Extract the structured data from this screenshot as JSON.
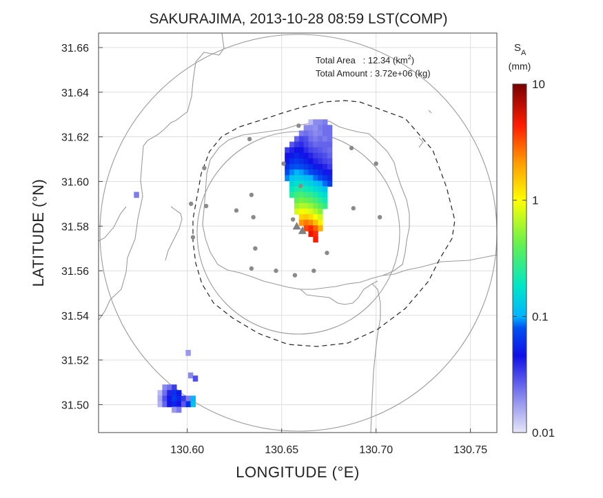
{
  "chart_data": {
    "type": "heatmap",
    "title": "SAKURAJIMA, 2013-10-28 08:59 LST(COMP)",
    "xlabel": "LONGITUDE (°E)",
    "ylabel": "LATITUDE (°N)",
    "xlim": [
      130.553,
      130.764
    ],
    "ylim": [
      31.4875,
      31.6665
    ],
    "xticks": [
      "130.60",
      "130.65",
      "130.70",
      "130.75"
    ],
    "xtick_values": [
      130.6,
      130.65,
      130.7,
      130.75
    ],
    "yticks": [
      "31.50",
      "31.52",
      "31.54",
      "31.56",
      "31.58",
      "31.60",
      "31.62",
      "31.64",
      "31.66"
    ],
    "ytick_values": [
      31.5,
      31.52,
      31.54,
      31.56,
      31.58,
      31.6,
      31.62,
      31.64,
      31.66
    ],
    "grid": true,
    "annotations": {
      "area_label": "Total Area   : 12.34 (km",
      "area_sup": "2",
      "area_close": ")",
      "amount_label": "Total Amount : 3.72e+06 (kg)"
    },
    "colorbar": {
      "label": "S",
      "label_sub": "A",
      "unit": "(mm)",
      "scale": "log",
      "range": [
        0.01,
        10
      ],
      "tick_labels": [
        "10",
        "1",
        "0.1",
        "0.01"
      ],
      "tick_values": [
        10,
        1,
        0.1,
        0.01
      ],
      "colors": [
        "#e6e6f8",
        "#1010e6",
        "#00b4ff",
        "#00e6c8",
        "#64f050",
        "#ffff00",
        "#ff9600",
        "#ff1e00",
        "#780000"
      ]
    },
    "vent": {
      "lon": 130.658,
      "lat": 31.58,
      "lon2": 130.661,
      "lat2": 31.578
    },
    "stations": [
      [
        130.659,
        31.625
      ],
      [
        130.633,
        31.619
      ],
      [
        130.687,
        31.615
      ],
      [
        130.609,
        31.606
      ],
      [
        130.651,
        31.608
      ],
      [
        130.66,
        31.598
      ],
      [
        130.7,
        31.608
      ],
      [
        130.602,
        31.59
      ],
      [
        130.61,
        31.589
      ],
      [
        130.634,
        31.594
      ],
      [
        130.626,
        31.587
      ],
      [
        130.635,
        31.584
      ],
      [
        130.688,
        31.588
      ],
      [
        130.702,
        31.584
      ],
      [
        130.656,
        31.583
      ],
      [
        130.603,
        31.575
      ],
      [
        130.636,
        31.57
      ],
      [
        130.674,
        31.568
      ],
      [
        130.634,
        31.561
      ],
      [
        130.647,
        31.56
      ],
      [
        130.657,
        31.558
      ],
      [
        130.667,
        31.56
      ]
    ],
    "plume": {
      "cell_lon": 0.0025,
      "cell_lat": 0.0025,
      "rows": [
        {
          "lat": 31.6265,
          "cells": [
            [
              130.6655,
              0.014
            ],
            [
              130.668,
              0.02
            ],
            [
              130.6705,
              0.02
            ],
            [
              130.673,
              0.022
            ]
          ]
        },
        {
          "lat": 31.624,
          "cells": [
            [
              130.663,
              0.02
            ],
            [
              130.6655,
              0.02
            ],
            [
              130.668,
              0.019
            ],
            [
              130.6705,
              0.022
            ],
            [
              130.673,
              0.024
            ],
            [
              130.6755,
              0.024
            ]
          ]
        },
        {
          "lat": 31.6215,
          "cells": [
            [
              130.6605,
              0.022
            ],
            [
              130.663,
              0.024
            ],
            [
              130.6655,
              0.022
            ],
            [
              130.668,
              0.02
            ],
            [
              130.6705,
              0.021
            ],
            [
              130.673,
              0.024
            ],
            [
              130.6755,
              0.024
            ]
          ]
        },
        {
          "lat": 31.619,
          "cells": [
            [
              130.658,
              0.026
            ],
            [
              130.6605,
              0.032
            ],
            [
              130.663,
              0.03
            ],
            [
              130.6655,
              0.024
            ],
            [
              130.668,
              0.022
            ],
            [
              130.6705,
              0.024
            ],
            [
              130.673,
              0.022
            ],
            [
              130.6755,
              0.024
            ]
          ]
        },
        {
          "lat": 31.6165,
          "cells": [
            [
              130.6555,
              0.028
            ],
            [
              130.658,
              0.035
            ],
            [
              130.6605,
              0.038
            ],
            [
              130.663,
              0.032
            ],
            [
              130.6655,
              0.028
            ],
            [
              130.668,
              0.025
            ],
            [
              130.6705,
              0.026
            ],
            [
              130.673,
              0.026
            ],
            [
              130.6755,
              0.026
            ]
          ]
        },
        {
          "lat": 31.614,
          "cells": [
            [
              130.653,
              0.034
            ],
            [
              130.6555,
              0.04
            ],
            [
              130.658,
              0.045
            ],
            [
              130.6605,
              0.045
            ],
            [
              130.663,
              0.038
            ],
            [
              130.6655,
              0.032
            ],
            [
              130.668,
              0.03
            ],
            [
              130.6705,
              0.028
            ],
            [
              130.673,
              0.026
            ],
            [
              130.6755,
              0.024
            ]
          ]
        },
        {
          "lat": 31.6115,
          "cells": [
            [
              130.653,
              0.045
            ],
            [
              130.6555,
              0.05
            ],
            [
              130.658,
              0.055
            ],
            [
              130.6605,
              0.05
            ],
            [
              130.663,
              0.045
            ],
            [
              130.6655,
              0.04
            ],
            [
              130.668,
              0.034
            ],
            [
              130.6705,
              0.032
            ],
            [
              130.673,
              0.03
            ],
            [
              130.6755,
              0.026
            ]
          ]
        },
        {
          "lat": 31.609,
          "cells": [
            [
              130.653,
              0.05
            ],
            [
              130.6555,
              0.06
            ],
            [
              130.658,
              0.065
            ],
            [
              130.6605,
              0.06
            ],
            [
              130.663,
              0.052
            ],
            [
              130.6655,
              0.046
            ],
            [
              130.668,
              0.04
            ],
            [
              130.6705,
              0.036
            ],
            [
              130.673,
              0.032
            ],
            [
              130.6755,
              0.03
            ]
          ]
        },
        {
          "lat": 31.6065,
          "cells": [
            [
              130.653,
              0.06
            ],
            [
              130.6555,
              0.075
            ],
            [
              130.658,
              0.08
            ],
            [
              130.6605,
              0.075
            ],
            [
              130.663,
              0.066
            ],
            [
              130.6655,
              0.058
            ],
            [
              130.668,
              0.05
            ],
            [
              130.6705,
              0.044
            ],
            [
              130.673,
              0.04
            ],
            [
              130.6755,
              0.034
            ]
          ]
        },
        {
          "lat": 31.604,
          "cells": [
            [
              130.653,
              0.075
            ],
            [
              130.6555,
              0.09
            ],
            [
              130.658,
              0.1
            ],
            [
              130.6605,
              0.095
            ],
            [
              130.663,
              0.085
            ],
            [
              130.6655,
              0.075
            ],
            [
              130.668,
              0.066
            ],
            [
              130.6705,
              0.058
            ],
            [
              130.673,
              0.05
            ],
            [
              130.6755,
              0.044
            ]
          ]
        },
        {
          "lat": 31.6015,
          "cells": [
            [
              130.653,
              0.09
            ],
            [
              130.6555,
              0.12
            ],
            [
              130.658,
              0.13
            ],
            [
              130.6605,
              0.125
            ],
            [
              130.663,
              0.11
            ],
            [
              130.6655,
              0.1
            ],
            [
              130.668,
              0.085
            ],
            [
              130.6705,
              0.075
            ],
            [
              130.673,
              0.064
            ],
            [
              130.6755,
              0.055
            ]
          ]
        },
        {
          "lat": 31.599,
          "cells": [
            [
              130.6555,
              0.15
            ],
            [
              130.658,
              0.17
            ],
            [
              130.6605,
              0.17
            ],
            [
              130.663,
              0.15
            ],
            [
              130.6655,
              0.14
            ],
            [
              130.668,
              0.12
            ],
            [
              130.6705,
              0.1
            ],
            [
              130.673,
              0.085
            ],
            [
              130.6755,
              0.07
            ]
          ]
        },
        {
          "lat": 31.5965,
          "cells": [
            [
              130.6555,
              0.19
            ],
            [
              130.658,
              0.23
            ],
            [
              130.6605,
              0.24
            ],
            [
              130.663,
              0.21
            ],
            [
              130.6655,
              0.19
            ],
            [
              130.668,
              0.16
            ],
            [
              130.6705,
              0.14
            ],
            [
              130.673,
              0.12
            ]
          ]
        },
        {
          "lat": 31.594,
          "cells": [
            [
              130.6555,
              0.25
            ],
            [
              130.658,
              0.31
            ],
            [
              130.6605,
              0.33
            ],
            [
              130.663,
              0.3
            ],
            [
              130.6655,
              0.27
            ],
            [
              130.668,
              0.23
            ],
            [
              130.6705,
              0.19
            ],
            [
              130.673,
              0.16
            ]
          ]
        },
        {
          "lat": 31.5915,
          "cells": [
            [
              130.658,
              0.4
            ],
            [
              130.6605,
              0.45
            ],
            [
              130.663,
              0.42
            ],
            [
              130.6655,
              0.38
            ],
            [
              130.668,
              0.32
            ],
            [
              130.6705,
              0.26
            ],
            [
              130.673,
              0.21
            ]
          ]
        },
        {
          "lat": 31.589,
          "cells": [
            [
              130.658,
              0.55
            ],
            [
              130.6605,
              0.65
            ],
            [
              130.663,
              0.62
            ],
            [
              130.6655,
              0.55
            ],
            [
              130.668,
              0.45
            ],
            [
              130.6705,
              0.36
            ],
            [
              130.673,
              0.28
            ]
          ]
        },
        {
          "lat": 31.5865,
          "cells": [
            [
              130.658,
              0.8
            ],
            [
              130.6605,
              0.95
            ],
            [
              130.663,
              0.9
            ],
            [
              130.6655,
              0.8
            ],
            [
              130.668,
              0.65
            ],
            [
              130.6705,
              0.5
            ]
          ]
        },
        {
          "lat": 31.584,
          "cells": [
            [
              130.6605,
              1.4
            ],
            [
              130.663,
              1.5
            ],
            [
              130.6655,
              1.3
            ],
            [
              130.668,
              1.0
            ],
            [
              130.6705,
              0.75
            ]
          ]
        },
        {
          "lat": 31.5815,
          "cells": [
            [
              130.6605,
              2.2
            ],
            [
              130.663,
              2.6
            ],
            [
              130.6655,
              2.3
            ],
            [
              130.668,
              1.6
            ],
            [
              130.6705,
              1.1
            ]
          ]
        },
        {
          "lat": 31.579,
          "cells": [
            [
              130.663,
              3.5
            ],
            [
              130.6655,
              4.2
            ],
            [
              130.668,
              3.0
            ],
            [
              130.6705,
              1.8
            ]
          ]
        },
        {
          "lat": 31.5765,
          "cells": [
            [
              130.6655,
              5.0
            ],
            [
              130.668,
              4.0
            ]
          ]
        },
        {
          "lat": 31.574,
          "cells": [
            [
              130.668,
              4.5
            ]
          ]
        }
      ]
    },
    "patches": [
      {
        "cells": [
          [
            130.5731,
            31.594,
            0.022
          ]
        ]
      },
      {
        "cells": [
          [
            130.6005,
            31.5232,
            0.018
          ],
          [
            130.6018,
            31.5131,
            0.02
          ],
          [
            130.6043,
            31.5117,
            0.03
          ]
        ]
      },
      {
        "cells": [
          [
            130.5881,
            31.5077,
            0.02
          ],
          [
            130.5906,
            31.5077,
            0.024
          ],
          [
            130.5931,
            31.5077,
            0.034
          ],
          [
            130.5856,
            31.5052,
            0.014
          ],
          [
            130.5881,
            31.5052,
            0.024
          ],
          [
            130.5906,
            31.5052,
            0.04
          ],
          [
            130.5931,
            31.5052,
            0.06
          ],
          [
            130.5956,
            31.5052,
            0.05
          ],
          [
            130.5856,
            31.5027,
            0.016
          ],
          [
            130.5881,
            31.5027,
            0.03
          ],
          [
            130.5906,
            31.5027,
            0.05
          ],
          [
            130.5931,
            31.5027,
            0.065
          ],
          [
            130.5956,
            31.5027,
            0.055
          ],
          [
            130.5981,
            31.5027,
            0.035
          ],
          [
            130.6006,
            31.5027,
            0.022
          ],
          [
            130.6031,
            31.5027,
            0.1
          ],
          [
            130.5856,
            31.5002,
            0.015
          ],
          [
            130.5881,
            31.5002,
            0.026
          ],
          [
            130.5906,
            31.5002,
            0.044
          ],
          [
            130.5931,
            31.5002,
            0.055
          ],
          [
            130.5956,
            31.5002,
            0.045
          ],
          [
            130.5981,
            31.5002,
            0.028
          ],
          [
            130.6006,
            31.5002,
            0.06
          ],
          [
            130.6031,
            31.5002,
            0.12
          ],
          [
            130.5931,
            31.4977,
            0.018
          ],
          [
            130.5956,
            31.4977,
            0.022
          ]
        ]
      }
    ]
  }
}
